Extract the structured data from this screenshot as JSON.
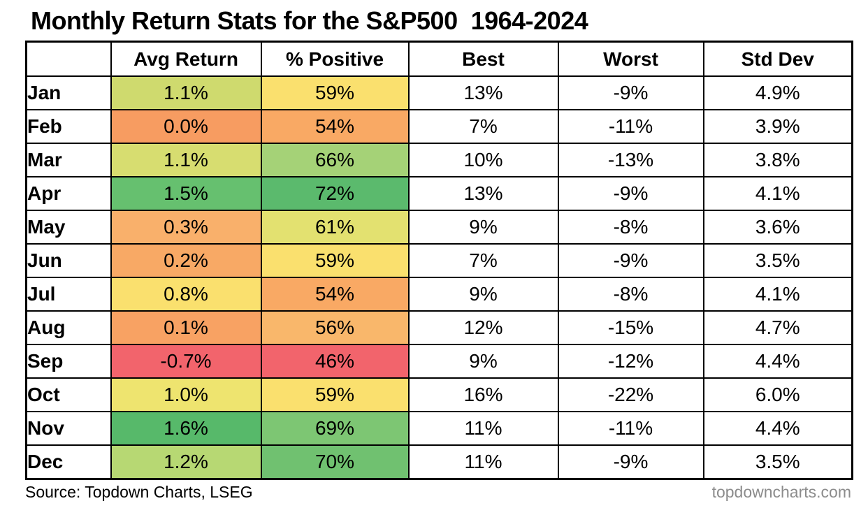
{
  "title": "Monthly Return Stats for the S&P500  1964-2024",
  "chart_data": {
    "type": "table",
    "title": "Monthly Return Stats for the S&P500 1964-2024",
    "columns": [
      "Avg Return",
      "% Positive",
      "Best",
      "Worst",
      "Std Dev"
    ],
    "months": [
      "Jan",
      "Feb",
      "Mar",
      "Apr",
      "May",
      "Jun",
      "Jul",
      "Aug",
      "Sep",
      "Oct",
      "Nov",
      "Dec"
    ],
    "avg_return_pct": [
      1.1,
      0.0,
      1.1,
      1.5,
      0.3,
      0.2,
      0.8,
      0.1,
      -0.7,
      1.0,
      1.6,
      1.2
    ],
    "pct_positive": [
      59,
      54,
      66,
      72,
      61,
      59,
      54,
      56,
      46,
      59,
      69,
      70
    ],
    "best_pct": [
      13,
      7,
      10,
      13,
      9,
      7,
      9,
      12,
      9,
      16,
      11,
      11
    ],
    "worst_pct": [
      -9,
      -11,
      -13,
      -9,
      -8,
      -9,
      -8,
      -15,
      -12,
      -22,
      -11,
      -9
    ],
    "std_dev_pct": [
      4.9,
      3.9,
      3.8,
      4.1,
      3.6,
      3.5,
      4.1,
      4.7,
      4.4,
      6.0,
      4.4,
      3.5
    ],
    "heatmap_columns": [
      "Avg Return",
      "% Positive"
    ],
    "colormap": "red-yellow-green",
    "source": "Source: Topdown Charts, LSEG",
    "website": "topdowncharts.com"
  },
  "table": {
    "columns": [
      "",
      "Avg Return",
      "% Positive",
      "Best",
      "Worst",
      "Std Dev"
    ],
    "rows": [
      {
        "month": "Jan",
        "avg": "1.1%",
        "avg_bg": "#cfda6e",
        "pct": "59%",
        "pct_bg": "#fae06e",
        "best": "13%",
        "worst": "-9%",
        "std": "4.9%"
      },
      {
        "month": "Feb",
        "avg": "0.0%",
        "avg_bg": "#f79c61",
        "pct": "54%",
        "pct_bg": "#f9a964",
        "best": "7%",
        "worst": "-11%",
        "std": "3.9%"
      },
      {
        "month": "Mar",
        "avg": "1.1%",
        "avg_bg": "#d7dd70",
        "pct": "66%",
        "pct_bg": "#a5d277",
        "best": "10%",
        "worst": "-13%",
        "std": "3.8%"
      },
      {
        "month": "Apr",
        "avg": "1.5%",
        "avg_bg": "#66c06f",
        "pct": "72%",
        "pct_bg": "#5bba6d",
        "best": "13%",
        "worst": "-9%",
        "std": "4.1%"
      },
      {
        "month": "May",
        "avg": "0.3%",
        "avg_bg": "#f9b06b",
        "pct": "61%",
        "pct_bg": "#e3e170",
        "best": "9%",
        "worst": "-8%",
        "std": "3.6%"
      },
      {
        "month": "Jun",
        "avg": "0.2%",
        "avg_bg": "#f8a965",
        "pct": "59%",
        "pct_bg": "#fae06e",
        "best": "7%",
        "worst": "-9%",
        "std": "3.5%"
      },
      {
        "month": "Jul",
        "avg": "0.8%",
        "avg_bg": "#fae06e",
        "pct": "54%",
        "pct_bg": "#f9a964",
        "best": "9%",
        "worst": "-8%",
        "std": "4.1%"
      },
      {
        "month": "Aug",
        "avg": "0.1%",
        "avg_bg": "#f8a263",
        "pct": "56%",
        "pct_bg": "#f9b76b",
        "best": "12%",
        "worst": "-15%",
        "std": "4.7%"
      },
      {
        "month": "Sep",
        "avg": "-0.7%",
        "avg_bg": "#f2646c",
        "pct": "46%",
        "pct_bg": "#f2646c",
        "best": "9%",
        "worst": "-12%",
        "std": "4.4%"
      },
      {
        "month": "Oct",
        "avg": "1.0%",
        "avg_bg": "#eee46f",
        "pct": "59%",
        "pct_bg": "#fae06e",
        "best": "16%",
        "worst": "-22%",
        "std": "6.0%"
      },
      {
        "month": "Nov",
        "avg": "1.6%",
        "avg_bg": "#57b96a",
        "pct": "69%",
        "pct_bg": "#7dc673",
        "best": "11%",
        "worst": "-11%",
        "std": "4.4%"
      },
      {
        "month": "Dec",
        "avg": "1.2%",
        "avg_bg": "#b7d873",
        "pct": "70%",
        "pct_bg": "#70c170",
        "best": "11%",
        "worst": "-9%",
        "std": "3.5%"
      }
    ]
  },
  "footer": {
    "source": "Source: Topdown Charts, LSEG",
    "site": "topdowncharts.com"
  },
  "colors": {
    "background": "#ffffff",
    "border": "#000000",
    "text": "#000000",
    "site_text": "#8c8c8c"
  }
}
